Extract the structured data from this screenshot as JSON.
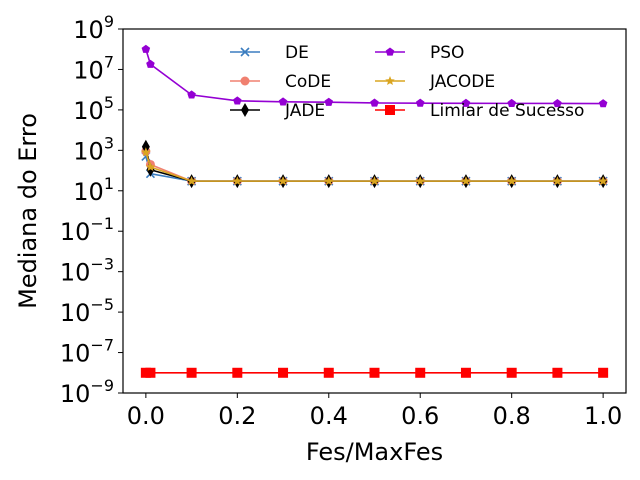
{
  "chart_data": {
    "type": "line",
    "xlabel": "Fes/MaxFes",
    "ylabel": "Mediana do Erro",
    "yscale": "log",
    "xlim": [
      -0.05,
      1.05
    ],
    "ylim": [
      1e-09,
      1000000000.0
    ],
    "xticks": [
      0.0,
      0.2,
      0.4,
      0.6,
      0.8,
      1.0
    ],
    "xtick_labels": [
      "0.0",
      "0.2",
      "0.4",
      "0.6",
      "0.8",
      "1.0"
    ],
    "yticks": [
      1e-09,
      1e-07,
      1e-05,
      0.001,
      0.1,
      10.0,
      1000.0,
      100000.0,
      10000000.0,
      1000000000.0
    ],
    "ytick_exponents": [
      "−9",
      "−7",
      "−5",
      "−3",
      "−1",
      "1",
      "3",
      "5",
      "7",
      "9"
    ],
    "ytick_base": "10",
    "grid": false,
    "legend_position": "top",
    "x": [
      0.0,
      0.01,
      0.1,
      0.2,
      0.3,
      0.4,
      0.5,
      0.6,
      0.7,
      0.8,
      0.9,
      1.0
    ],
    "series": [
      {
        "name": "DE",
        "color": "#3b7dc0",
        "marker": "x",
        "values": [
          500,
          70,
          30,
          30,
          30,
          30,
          30,
          30,
          30,
          30,
          30,
          30
        ]
      },
      {
        "name": "CoDE",
        "color": "#f08070",
        "marker": "circle",
        "values": [
          900,
          200,
          30,
          30,
          30,
          30,
          30,
          30,
          30,
          30,
          30,
          30
        ]
      },
      {
        "name": "JADE",
        "color": "#000000",
        "marker": "diamond",
        "values": [
          1500,
          110,
          30,
          30,
          30,
          30,
          30,
          30,
          30,
          30,
          30,
          30
        ]
      },
      {
        "name": "PSO",
        "color": "#9400d3",
        "marker": "pentagon",
        "values": [
          100000000,
          18000000,
          550000,
          280000,
          250000,
          240000,
          220000,
          215000,
          212000,
          210000,
          208000,
          205000
        ]
      },
      {
        "name": "JACODE",
        "color": "#daa520",
        "marker": "star",
        "values": [
          800,
          150,
          30,
          30,
          30,
          30,
          30,
          30,
          30,
          30,
          30,
          30
        ]
      },
      {
        "name": "Limiar de Sucesso",
        "color": "#ff0000",
        "marker": "square",
        "values": [
          1e-08,
          1e-08,
          1e-08,
          1e-08,
          1e-08,
          1e-08,
          1e-08,
          1e-08,
          1e-08,
          1e-08,
          1e-08,
          1e-08
        ]
      }
    ]
  }
}
